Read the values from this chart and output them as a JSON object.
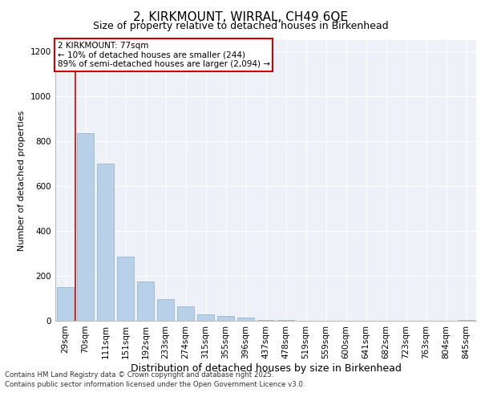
{
  "title1": "2, KIRKMOUNT, WIRRAL, CH49 6QE",
  "title2": "Size of property relative to detached houses in Birkenhead",
  "xlabel": "Distribution of detached houses by size in Birkenhead",
  "ylabel": "Number of detached properties",
  "categories": [
    "29sqm",
    "70sqm",
    "111sqm",
    "151sqm",
    "192sqm",
    "233sqm",
    "274sqm",
    "315sqm",
    "355sqm",
    "396sqm",
    "437sqm",
    "478sqm",
    "519sqm",
    "559sqm",
    "600sqm",
    "641sqm",
    "682sqm",
    "723sqm",
    "763sqm",
    "804sqm",
    "845sqm"
  ],
  "values": [
    150,
    835,
    700,
    285,
    175,
    95,
    65,
    30,
    20,
    15,
    5,
    3,
    0,
    0,
    0,
    0,
    0,
    0,
    0,
    0,
    5
  ],
  "bar_color": "#b8d0e8",
  "bar_edge_color": "#8ab0cc",
  "annotation_text": "2 KIRKMOUNT: 77sqm\n← 10% of detached houses are smaller (244)\n89% of semi-detached houses are larger (2,094) →",
  "red_line_x": 0.5,
  "ylim": [
    0,
    1250
  ],
  "yticks": [
    0,
    200,
    400,
    600,
    800,
    1000,
    1200
  ],
  "footnote1": "Contains HM Land Registry data © Crown copyright and database right 2025.",
  "footnote2": "Contains public sector information licensed under the Open Government Licence v3.0.",
  "background_color": "#eef2f8",
  "grid_color": "#ffffff",
  "title1_fontsize": 11,
  "title2_fontsize": 9,
  "ylabel_fontsize": 8,
  "xlabel_fontsize": 9,
  "tick_fontsize": 7.5,
  "annot_fontsize": 7.5
}
